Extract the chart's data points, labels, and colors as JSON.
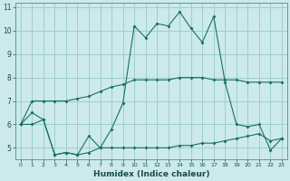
{
  "xlabel": "Humidex (Indice chaleur)",
  "ylabel": "",
  "bg_color": "#cceaea",
  "grid_color": "#9ecece",
  "line_color": "#1a6e6a",
  "xlim": [
    -0.5,
    23.5
  ],
  "ylim": [
    4.5,
    11.2
  ],
  "xticks": [
    0,
    1,
    2,
    3,
    4,
    5,
    6,
    7,
    8,
    9,
    10,
    11,
    12,
    13,
    14,
    15,
    16,
    17,
    18,
    19,
    20,
    21,
    22,
    23
  ],
  "yticks": [
    5,
    6,
    7,
    8,
    9,
    10,
    11
  ],
  "series": [
    {
      "x": [
        0,
        1,
        2,
        3,
        4,
        5,
        6,
        7,
        8,
        9,
        10,
        11,
        12,
        13,
        14,
        15,
        16,
        17,
        18,
        19,
        20,
        21,
        22,
        23
      ],
      "y": [
        6.0,
        7.0,
        7.0,
        7.0,
        7.0,
        7.1,
        7.2,
        7.4,
        7.6,
        7.7,
        7.9,
        7.9,
        7.9,
        7.9,
        8.0,
        8.0,
        8.0,
        7.9,
        7.9,
        7.9,
        7.8,
        7.8,
        7.8,
        7.8
      ]
    },
    {
      "x": [
        0,
        1,
        2,
        3,
        4,
        5,
        6,
        7,
        8,
        9,
        10,
        11,
        12,
        13,
        14,
        15,
        16,
        17,
        18,
        19,
        20,
        21,
        22,
        23
      ],
      "y": [
        6.0,
        6.5,
        6.2,
        4.7,
        4.8,
        4.7,
        5.5,
        5.0,
        5.8,
        6.9,
        10.2,
        9.7,
        10.3,
        10.2,
        10.8,
        10.1,
        9.5,
        10.6,
        7.8,
        6.0,
        5.9,
        6.0,
        4.9,
        5.4
      ]
    },
    {
      "x": [
        0,
        1,
        2,
        3,
        4,
        5,
        6,
        7,
        8,
        9,
        10,
        11,
        12,
        13,
        14,
        15,
        16,
        17,
        18,
        19,
        20,
        21,
        22,
        23
      ],
      "y": [
        6.0,
        6.0,
        6.2,
        4.7,
        4.8,
        4.7,
        4.8,
        5.0,
        5.0,
        5.0,
        5.0,
        5.0,
        5.0,
        5.0,
        5.1,
        5.1,
        5.2,
        5.2,
        5.3,
        5.4,
        5.5,
        5.6,
        5.3,
        5.4
      ]
    }
  ]
}
